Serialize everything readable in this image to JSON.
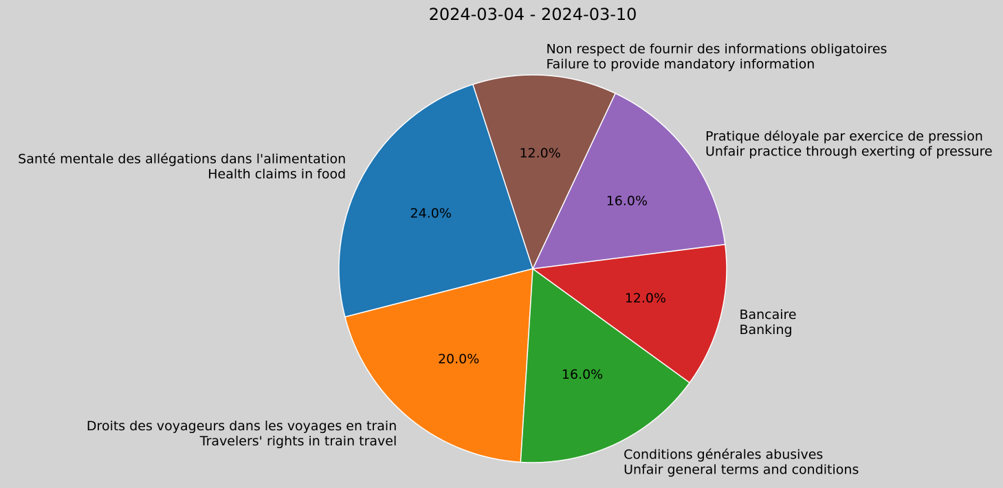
{
  "chart_data": {
    "type": "pie",
    "title": "2024-03-04 - 2024-03-10",
    "start_angle_deg": 108,
    "direction": "counterclockwise",
    "slices": [
      {
        "label_fr": "Santé mentale des allégations dans l'alimentation",
        "label_en": "Health claims in food",
        "value": 24.0,
        "pct_text": "24.0%",
        "color": "#1f77b4"
      },
      {
        "label_fr": "Droits des voyageurs dans les voyages en train",
        "label_en": "Travelers' rights in train travel",
        "value": 20.0,
        "pct_text": "20.0%",
        "color": "#ff7f0e"
      },
      {
        "label_fr": "Conditions générales abusives",
        "label_en": "Unfair general terms and conditions",
        "value": 16.0,
        "pct_text": "16.0%",
        "color": "#2ca02c"
      },
      {
        "label_fr": "Bancaire",
        "label_en": "Banking",
        "value": 12.0,
        "pct_text": "12.0%",
        "color": "#d62728"
      },
      {
        "label_fr": "Pratique déloyale par exercice de pression",
        "label_en": "Unfair practice through exerting of pressure",
        "value": 16.0,
        "pct_text": "16.0%",
        "color": "#9467bd"
      },
      {
        "label_fr": "Non respect de fournir des informations obligatoires",
        "label_en": "Failure to provide mandatory information",
        "value": 12.0,
        "pct_text": "12.0%",
        "color": "#8c564b"
      }
    ],
    "background": "#d3d3d3",
    "slice_edge_color": "#ffffff"
  }
}
